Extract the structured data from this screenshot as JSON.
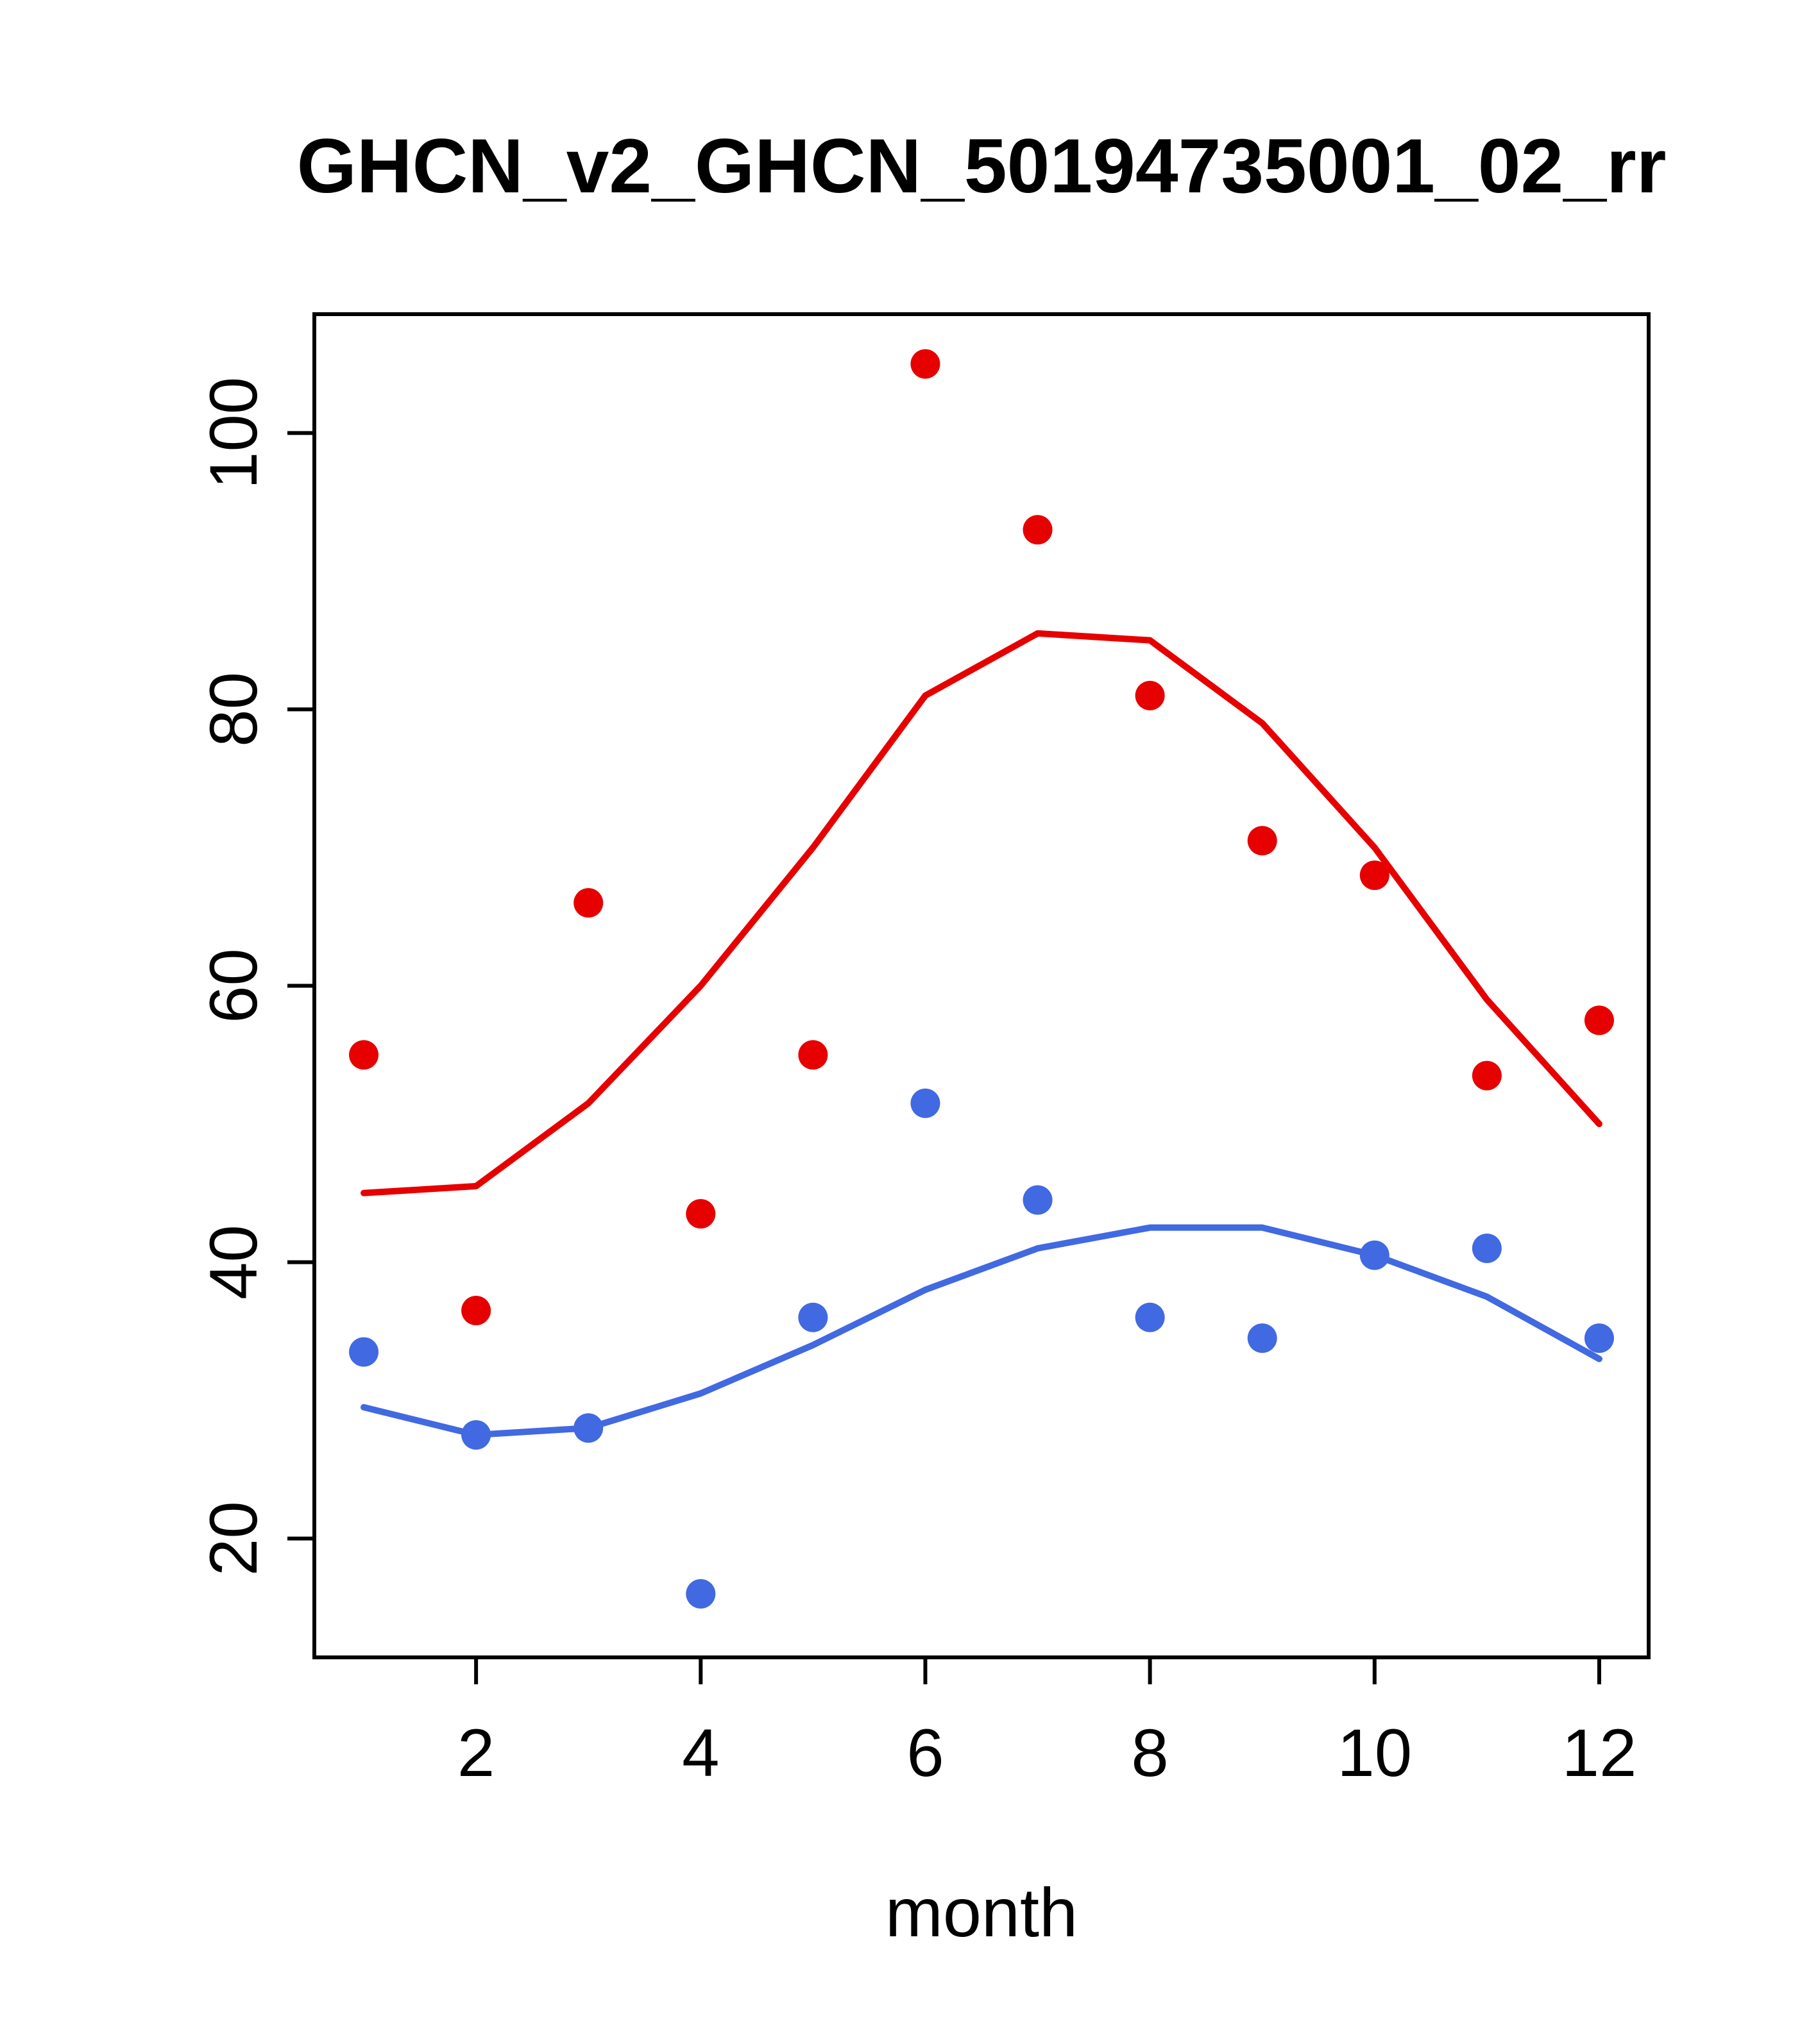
{
  "figure": {
    "title": "GHCN_v2_GHCN_50194735001_02_rr",
    "xlabel": "month"
  },
  "chart_data": {
    "type": "scatter",
    "title": "GHCN_v2_GHCN_50194735001_02_rr",
    "xlabel": "month",
    "ylabel": "",
    "x": [
      1,
      2,
      3,
      4,
      5,
      6,
      7,
      8,
      9,
      10,
      11,
      12
    ],
    "x_ticks": [
      2,
      4,
      6,
      8,
      10,
      12
    ],
    "y_ticks": [
      20,
      40,
      60,
      80,
      100
    ],
    "xlim": [
      0.56,
      12.44
    ],
    "ylim": [
      11.4,
      108.6
    ],
    "grid": false,
    "legend": null,
    "colors": {
      "red": "#e60000",
      "blue": "#4169e1"
    },
    "series": [
      {
        "name": "red-points",
        "type": "points",
        "color": "#e60000",
        "values": [
          55,
          36.5,
          66,
          43.5,
          55,
          105,
          93,
          81,
          70.5,
          68,
          53.5,
          57.5
        ]
      },
      {
        "name": "red-line",
        "type": "line",
        "color": "#e60000",
        "values": [
          45,
          45.5,
          51.5,
          60,
          70,
          81,
          85.5,
          85,
          79,
          70,
          59,
          50
        ]
      },
      {
        "name": "blue-points",
        "type": "points",
        "color": "#4169e1",
        "values": [
          33.5,
          27.5,
          28,
          16,
          36,
          51.5,
          44.5,
          36,
          34.5,
          40.5,
          41,
          34.5
        ]
      },
      {
        "name": "blue-line",
        "type": "line",
        "color": "#4169e1",
        "values": [
          29.5,
          27.5,
          28,
          30.5,
          34,
          38,
          41,
          42.5,
          42.5,
          40.5,
          37.5,
          33
        ]
      }
    ]
  }
}
